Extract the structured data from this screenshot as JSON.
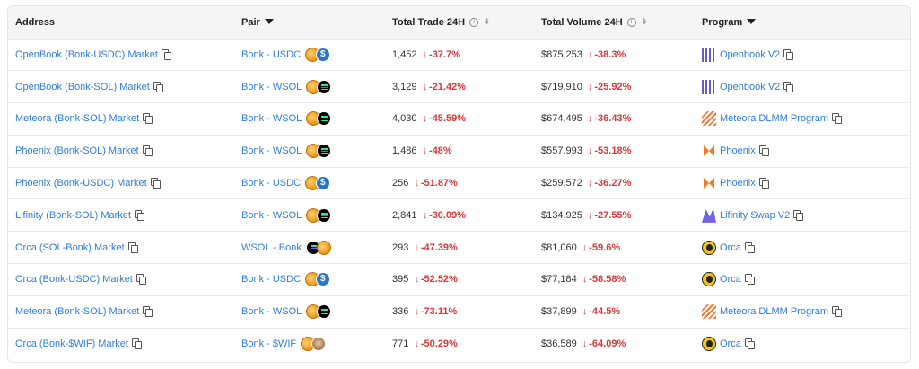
{
  "headers": {
    "address": "Address",
    "pair": "Pair",
    "trade": "Total Trade 24H",
    "volume": "Total Volume 24H",
    "program": "Program"
  },
  "rows": [
    {
      "address": "OpenBook (Bonk-USDC) Market",
      "pair": "Bonk - USDC",
      "coins": [
        "bonk",
        "usdc"
      ],
      "trade": "1,452",
      "trade_change": "-37.7%",
      "volume": "$875,253",
      "volume_change": "-38.3%",
      "program": "Openbook V2",
      "program_icon": "openbook"
    },
    {
      "address": "OpenBook (Bonk-SOL) Market",
      "pair": "Bonk - WSOL",
      "coins": [
        "bonk",
        "wsol"
      ],
      "trade": "3,129",
      "trade_change": "-21.42%",
      "volume": "$719,910",
      "volume_change": "-25.92%",
      "program": "Openbook V2",
      "program_icon": "openbook"
    },
    {
      "address": "Meteora (Bonk-SOL) Market",
      "pair": "Bonk - WSOL",
      "coins": [
        "bonk",
        "wsol"
      ],
      "trade": "4,030",
      "trade_change": "-45.59%",
      "volume": "$674,495",
      "volume_change": "-36.43%",
      "program": "Meteora DLMM Program",
      "program_icon": "meteora"
    },
    {
      "address": "Phoenix (Bonk-SOL) Market",
      "pair": "Bonk - WSOL",
      "coins": [
        "bonk",
        "wsol"
      ],
      "trade": "1,486",
      "trade_change": "-48%",
      "volume": "$557,993",
      "volume_change": "-53.18%",
      "program": "Phoenix",
      "program_icon": "phoenix"
    },
    {
      "address": "Phoenix (Bonk-USDC) Market",
      "pair": "Bonk - USDC",
      "coins": [
        "bonk",
        "usdc"
      ],
      "trade": "256",
      "trade_change": "-51.87%",
      "volume": "$259,572",
      "volume_change": "-36.27%",
      "program": "Phoenix",
      "program_icon": "phoenix"
    },
    {
      "address": "Lifinity (Bonk-SOL) Market",
      "pair": "Bonk - WSOL",
      "coins": [
        "bonk",
        "wsol"
      ],
      "trade": "2,841",
      "trade_change": "-30.09%",
      "volume": "$134,925",
      "volume_change": "-27.55%",
      "program": "Lifinity Swap V2",
      "program_icon": "lifinity"
    },
    {
      "address": "Orca (SOL-Bonk) Market",
      "pair": "WSOL - Bonk",
      "coins": [
        "wsol",
        "bonk"
      ],
      "trade": "293",
      "trade_change": "-47.39%",
      "volume": "$81,060",
      "volume_change": "-59.6%",
      "program": "Orca",
      "program_icon": "orca"
    },
    {
      "address": "Orca (Bonk-USDC) Market",
      "pair": "Bonk - USDC",
      "coins": [
        "bonk",
        "usdc"
      ],
      "trade": "395",
      "trade_change": "-52.52%",
      "volume": "$77,184",
      "volume_change": "-58.58%",
      "program": "Orca",
      "program_icon": "orca"
    },
    {
      "address": "Meteora (Bonk-SOL) Market",
      "pair": "Bonk - WSOL",
      "coins": [
        "bonk",
        "wsol"
      ],
      "trade": "336",
      "trade_change": "-73.11%",
      "volume": "$37,899",
      "volume_change": "-44.5%",
      "program": "Meteora DLMM Program",
      "program_icon": "meteora"
    },
    {
      "address": "Orca (Bonk-$WIF) Market",
      "pair": "Bonk - $WIF",
      "coins": [
        "bonk",
        "wif"
      ],
      "trade": "771",
      "trade_change": "-50.29%",
      "volume": "$36,589",
      "volume_change": "-64.09%",
      "program": "Orca",
      "program_icon": "orca"
    }
  ],
  "colors": {
    "link": "#2f7ed8",
    "negative": "#d63a3a",
    "header_bg": "#f5f5f5"
  }
}
